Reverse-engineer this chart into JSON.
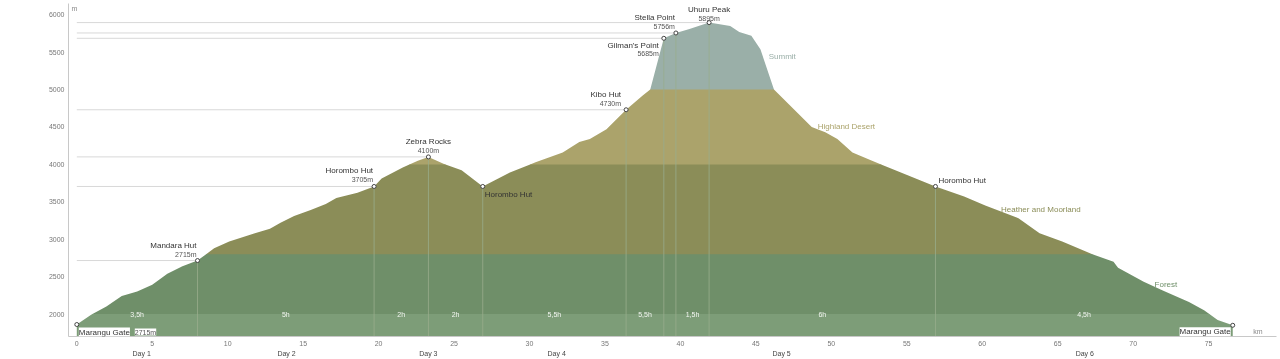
{
  "chart_data": {
    "type": "area",
    "xlabel": "km",
    "ylabel": "m",
    "x": [
      0,
      0.95,
      1.04,
      1.96,
      2.98,
      4.0,
      5.0,
      6.0,
      7.0,
      8.0,
      8.57,
      9.1,
      10.1,
      11.8,
      12.8,
      13.5,
      14.4,
      15.5,
      16.5,
      17.2,
      18.6,
      19.7,
      20.2,
      21.6,
      22.04,
      22.6,
      23.3,
      24.3,
      24.43,
      25.5,
      26.9,
      28.7,
      30.04,
      30.4,
      32.2,
      33.3,
      34.0,
      35.1,
      36.4,
      37.5,
      38.0,
      38.5,
      38.9,
      39.7,
      40.6,
      41.9,
      43.3,
      43.9,
      44.7,
      45.3,
      46.2,
      47.7,
      48.7,
      49.6,
      50.4,
      51.4,
      52.7,
      53.3,
      55.1,
      56.9,
      58.8,
      60.2,
      62.4,
      63.8,
      65.3,
      67.3,
      68.7,
      69.0,
      70.7,
      72.0,
      73.7,
      74.7,
      75.05,
      75.6,
      76.6
    ],
    "series": [
      {
        "color": "#7d9d78",
        "values": [
          1860,
          1990,
          2000,
          2000,
          2000,
          2000,
          2000,
          2000,
          2000,
          2000,
          2000,
          2000,
          2000,
          2000,
          2000,
          2000,
          2000,
          2000,
          2000,
          2000,
          2000,
          2000,
          2000,
          2000,
          2000,
          2000,
          2000,
          2000,
          2000,
          2000,
          2000,
          2000,
          2000,
          2000,
          2000,
          2000,
          2000,
          2000,
          2000,
          2000,
          2000,
          2000,
          2000,
          2000,
          2000,
          2000,
          2000,
          2000,
          2000,
          2000,
          2000,
          2000,
          2000,
          2000,
          2000,
          2000,
          2000,
          2000,
          2000,
          2000,
          2000,
          2000,
          2000,
          2000,
          2000,
          2000,
          2000,
          2000,
          2000,
          2000,
          2000,
          2000,
          2000,
          1920,
          1850
        ]
      },
      {
        "name": "Forest",
        "color": "#6f8f69",
        "values": [
          null,
          null,
          2000,
          2100,
          2240,
          2300,
          2390,
          2540,
          2640,
          2715,
          2800,
          2800,
          2800,
          2800,
          2800,
          2800,
          2800,
          2800,
          2800,
          2800,
          2800,
          2800,
          2800,
          2800,
          2800,
          2800,
          2800,
          2800,
          2800,
          2800,
          2800,
          2800,
          2800,
          2800,
          2800,
          2800,
          2800,
          2800,
          2800,
          2800,
          2800,
          2800,
          2800,
          2800,
          2800,
          2800,
          2800,
          2800,
          2800,
          2800,
          2800,
          2800,
          2800,
          2800,
          2800,
          2800,
          2800,
          2800,
          2800,
          2800,
          2800,
          2800,
          2800,
          2800,
          2800,
          2800,
          2700,
          2620,
          2430,
          2310,
          2160,
          2050,
          2000,
          null,
          null
        ]
      },
      {
        "name": "Heather and Moorland",
        "color": "#8b8d58",
        "values": [
          null,
          null,
          null,
          null,
          null,
          null,
          null,
          null,
          null,
          null,
          2800,
          2880,
          2970,
          3080,
          3140,
          3220,
          3310,
          3390,
          3470,
          3550,
          3620,
          3705,
          3810,
          3960,
          4000,
          4000,
          4000,
          4000,
          4000,
          3920,
          3705,
          3890,
          4000,
          4000,
          4000,
          4000,
          4000,
          4000,
          4000,
          4000,
          4000,
          4000,
          4000,
          4000,
          4000,
          4000,
          4000,
          4000,
          4000,
          4000,
          4000,
          4000,
          4000,
          4000,
          4000,
          4000,
          4000,
          4000,
          3850,
          3705,
          3570,
          3450,
          3280,
          3080,
          2970,
          2800,
          null,
          null,
          null,
          null,
          null,
          null,
          null,
          null,
          null
        ]
      },
      {
        "name": "Highland Desert",
        "color": "#aba36b",
        "values": [
          null,
          null,
          null,
          null,
          null,
          null,
          null,
          null,
          null,
          null,
          null,
          null,
          null,
          null,
          null,
          null,
          null,
          null,
          null,
          null,
          null,
          null,
          null,
          null,
          4000,
          4050,
          4100,
          4010,
          4000,
          null,
          null,
          null,
          4000,
          4030,
          4160,
          4300,
          4340,
          4470,
          4730,
          4920,
          5000,
          5000,
          5000,
          5000,
          5000,
          5000,
          5000,
          5000,
          5000,
          5000,
          5000,
          4700,
          4500,
          4430,
          4340,
          4160,
          4050,
          4000,
          null,
          null,
          null,
          null,
          null,
          null,
          null,
          null,
          null,
          null,
          null,
          null,
          null,
          null,
          null,
          null,
          null
        ]
      },
      {
        "name": "Summit",
        "color": "#9aafa8",
        "values": [
          null,
          null,
          null,
          null,
          null,
          null,
          null,
          null,
          null,
          null,
          null,
          null,
          null,
          null,
          null,
          null,
          null,
          null,
          null,
          null,
          null,
          null,
          null,
          null,
          null,
          null,
          null,
          null,
          null,
          null,
          null,
          null,
          null,
          null,
          null,
          null,
          null,
          null,
          null,
          null,
          5000,
          5380,
          5685,
          5756,
          5810,
          5895,
          5850,
          5770,
          5720,
          5540,
          5000,
          null,
          null,
          null,
          null,
          null,
          null,
          null,
          null,
          null,
          null,
          null,
          null,
          null,
          null,
          null,
          null,
          null,
          null,
          null,
          null,
          null,
          null,
          null,
          null
        ]
      }
    ],
    "xlim": [
      -0.55,
      79.5
    ],
    "ylim": [
      1700,
      6150
    ],
    "xticks": [
      0,
      5,
      10,
      15,
      20,
      25,
      30,
      35,
      40,
      45,
      50,
      55,
      60,
      65,
      70,
      75
    ],
    "yticks": [
      2000,
      2500,
      3000,
      3500,
      4000,
      4500,
      5000,
      5500,
      6000
    ],
    "grid": false,
    "ref_lines": [
      {
        "axis": "x",
        "value": 8.0,
        "color": "#98ad8c"
      },
      {
        "axis": "x",
        "value": 19.7,
        "color": "#98ad8c"
      },
      {
        "axis": "x",
        "value": 23.3,
        "color": "#98ad8c"
      },
      {
        "axis": "x",
        "value": 26.9,
        "color": "#98ad8c"
      },
      {
        "axis": "x",
        "value": 36.4,
        "color": "#98ad8c"
      },
      {
        "axis": "x",
        "value": 38.9,
        "color": "#98ad8c"
      },
      {
        "axis": "x",
        "value": 39.7,
        "color": "#98ad8c"
      },
      {
        "axis": "x",
        "value": 41.9,
        "color": "#98ad8c"
      },
      {
        "axis": "x",
        "value": 56.9,
        "color": "#98ad8c"
      }
    ],
    "annotations": [
      {
        "text": "Marangu Gate\n2715m",
        "x": 0,
        "y": 1860
      },
      {
        "text": "Mandara Hut\n2715m",
        "x": 8.0,
        "y": 2715
      },
      {
        "text": "Horombo Hut\n3705m",
        "x": 19.7,
        "y": 3705
      },
      {
        "text": "Zebra Rocks\n4100m",
        "x": 23.3,
        "y": 4100
      },
      {
        "text": "Horombo Hut",
        "x": 26.9,
        "y": 3705
      },
      {
        "text": "Kibo Hut\n4730m",
        "x": 36.4,
        "y": 4730
      },
      {
        "text": "Gilman's Point\n5685m",
        "x": 38.9,
        "y": 5685
      },
      {
        "text": "Stella Point\n5756m",
        "x": 39.7,
        "y": 5756
      },
      {
        "text": "Uhuru Peak\n5895m",
        "x": 41.9,
        "y": 5895
      },
      {
        "text": "Horombo Hut",
        "x": 56.9,
        "y": 3705
      },
      {
        "text": "Marangu Gate",
        "x": 76.6,
        "y": 1850
      },
      "3,5h",
      "5h",
      "2h",
      "2h",
      "5,5h",
      "5,5h",
      "1,5h",
      "6h",
      "4,5h",
      "Day 1",
      "Day 2",
      "Day 3",
      "Day 4",
      "Day 5",
      "Day 6"
    ]
  }
}
